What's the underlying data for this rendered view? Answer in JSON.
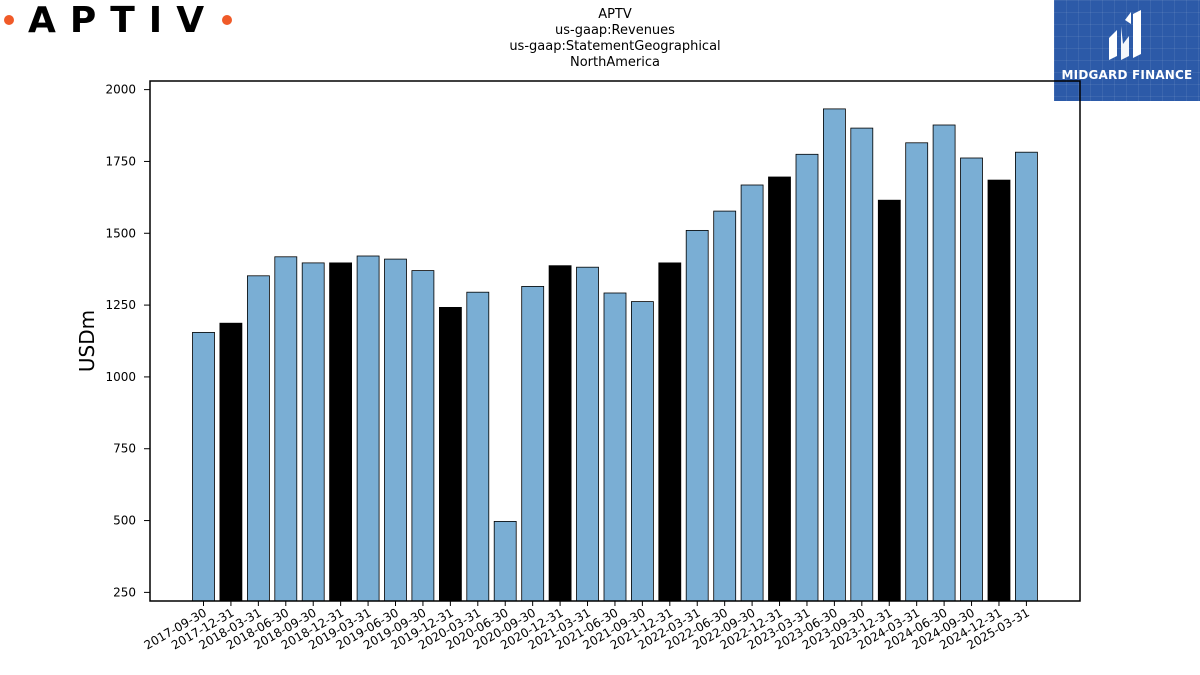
{
  "brand": {
    "logo_text": "APTIV",
    "dot_color": "#f05a28"
  },
  "badge": {
    "text": "MIDGARD FINANCE",
    "bg_color": "#2c5aa8",
    "icon": "midgard-logo-icon"
  },
  "chart_data": {
    "type": "bar",
    "title_lines": [
      "APTV",
      "us-gaap:Revenues",
      "us-gaap:StatementGeographical",
      "NorthAmerica"
    ],
    "ylabel": "USDm",
    "xlabel": "",
    "ylim": [
      220,
      2030
    ],
    "yticks": [
      250,
      500,
      750,
      1000,
      1250,
      1500,
      1750,
      2000
    ],
    "bar_color_default": "#7aaed4",
    "bar_color_highlight": "#000000",
    "categories": [
      "2017-09-30",
      "2017-12-31",
      "2018-03-31",
      "2018-06-30",
      "2018-09-30",
      "2018-12-31",
      "2019-03-31",
      "2019-06-30",
      "2019-09-30",
      "2019-12-31",
      "2020-03-31",
      "2020-06-30",
      "2020-09-30",
      "2020-12-31",
      "2021-03-31",
      "2021-06-30",
      "2021-09-30",
      "2021-12-31",
      "2022-03-31",
      "2022-06-30",
      "2022-09-30",
      "2022-12-31",
      "2023-03-31",
      "2023-06-30",
      "2023-09-30",
      "2023-12-31",
      "2024-03-31",
      "2024-06-30",
      "2024-09-30",
      "2024-12-31",
      "2025-03-31"
    ],
    "values": [
      1155,
      1187,
      1352,
      1418,
      1397,
      1397,
      1421,
      1410,
      1370,
      1242,
      1295,
      497,
      1315,
      1387,
      1382,
      1292,
      1262,
      1397,
      1510,
      1577,
      1668,
      1696,
      1775,
      1933,
      1866,
      1615,
      1815,
      1877,
      1762,
      1685,
      1782
    ],
    "highlighted": [
      false,
      true,
      false,
      false,
      false,
      true,
      false,
      false,
      false,
      true,
      false,
      false,
      false,
      true,
      false,
      false,
      false,
      true,
      false,
      false,
      false,
      true,
      false,
      false,
      false,
      true,
      false,
      false,
      false,
      true,
      false
    ],
    "grid": false,
    "legend": "none"
  }
}
